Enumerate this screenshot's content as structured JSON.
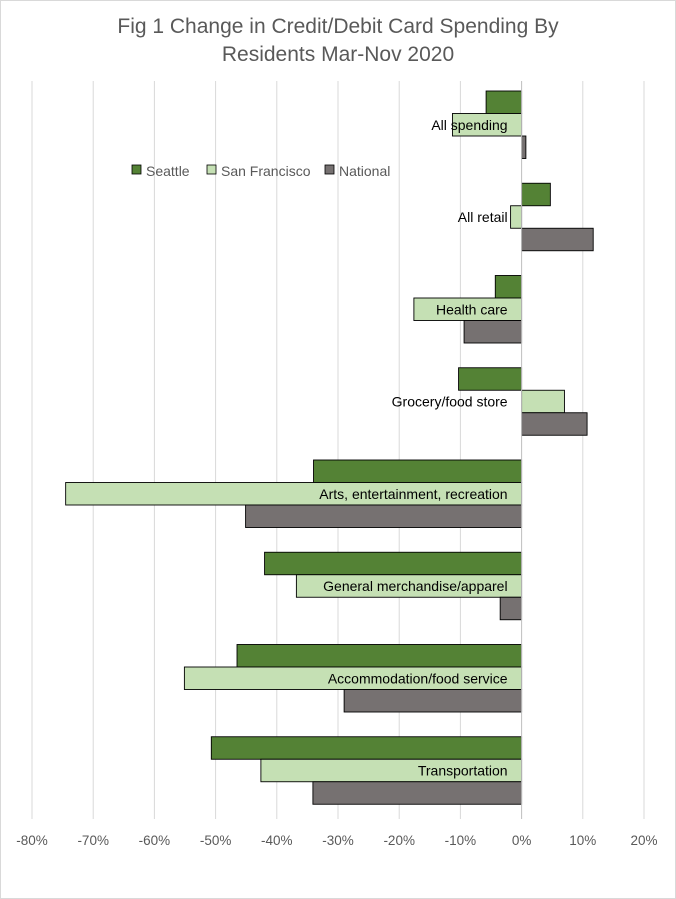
{
  "chart_data": {
    "type": "bar",
    "orientation": "horizontal",
    "title_lines": [
      "Fig 1 Change in Credit/Debit Card Spending By",
      "Residents Mar-Nov 2020"
    ],
    "categories": [
      "All spending",
      "All retail",
      "Health care",
      "Grocery/food store",
      "Arts, entertainment, recreation",
      "General merchandise/apparel",
      "Accommodation/food service",
      "Transportation"
    ],
    "series": [
      {
        "name": "Seattle",
        "color": "#548235",
        "values": [
          -5.8,
          4.7,
          -4.3,
          -10.3,
          -34.0,
          -42.0,
          -46.5,
          -50.7
        ]
      },
      {
        "name": "San Francisco",
        "color": "#c5e0b4",
        "values": [
          -11.3,
          -1.8,
          -17.6,
          7.0,
          -74.5,
          -36.8,
          -55.1,
          -42.6
        ]
      },
      {
        "name": "National",
        "color": "#767171",
        "values": [
          0.7,
          11.7,
          -9.4,
          10.7,
          -45.1,
          -3.5,
          -29.0,
          -34.1
        ]
      }
    ],
    "xlim": [
      -80,
      20
    ],
    "x_ticks": [
      -80,
      -70,
      -60,
      -50,
      -40,
      -30,
      -20,
      -10,
      0,
      10,
      20
    ],
    "tick_labels": [
      "-80%",
      "-70%",
      "-60%",
      "-50%",
      "-40%",
      "-30%",
      "-20%",
      "-10%",
      "0%",
      "10%",
      "20%"
    ],
    "grid": "vertical",
    "legend_position": "top-left"
  }
}
